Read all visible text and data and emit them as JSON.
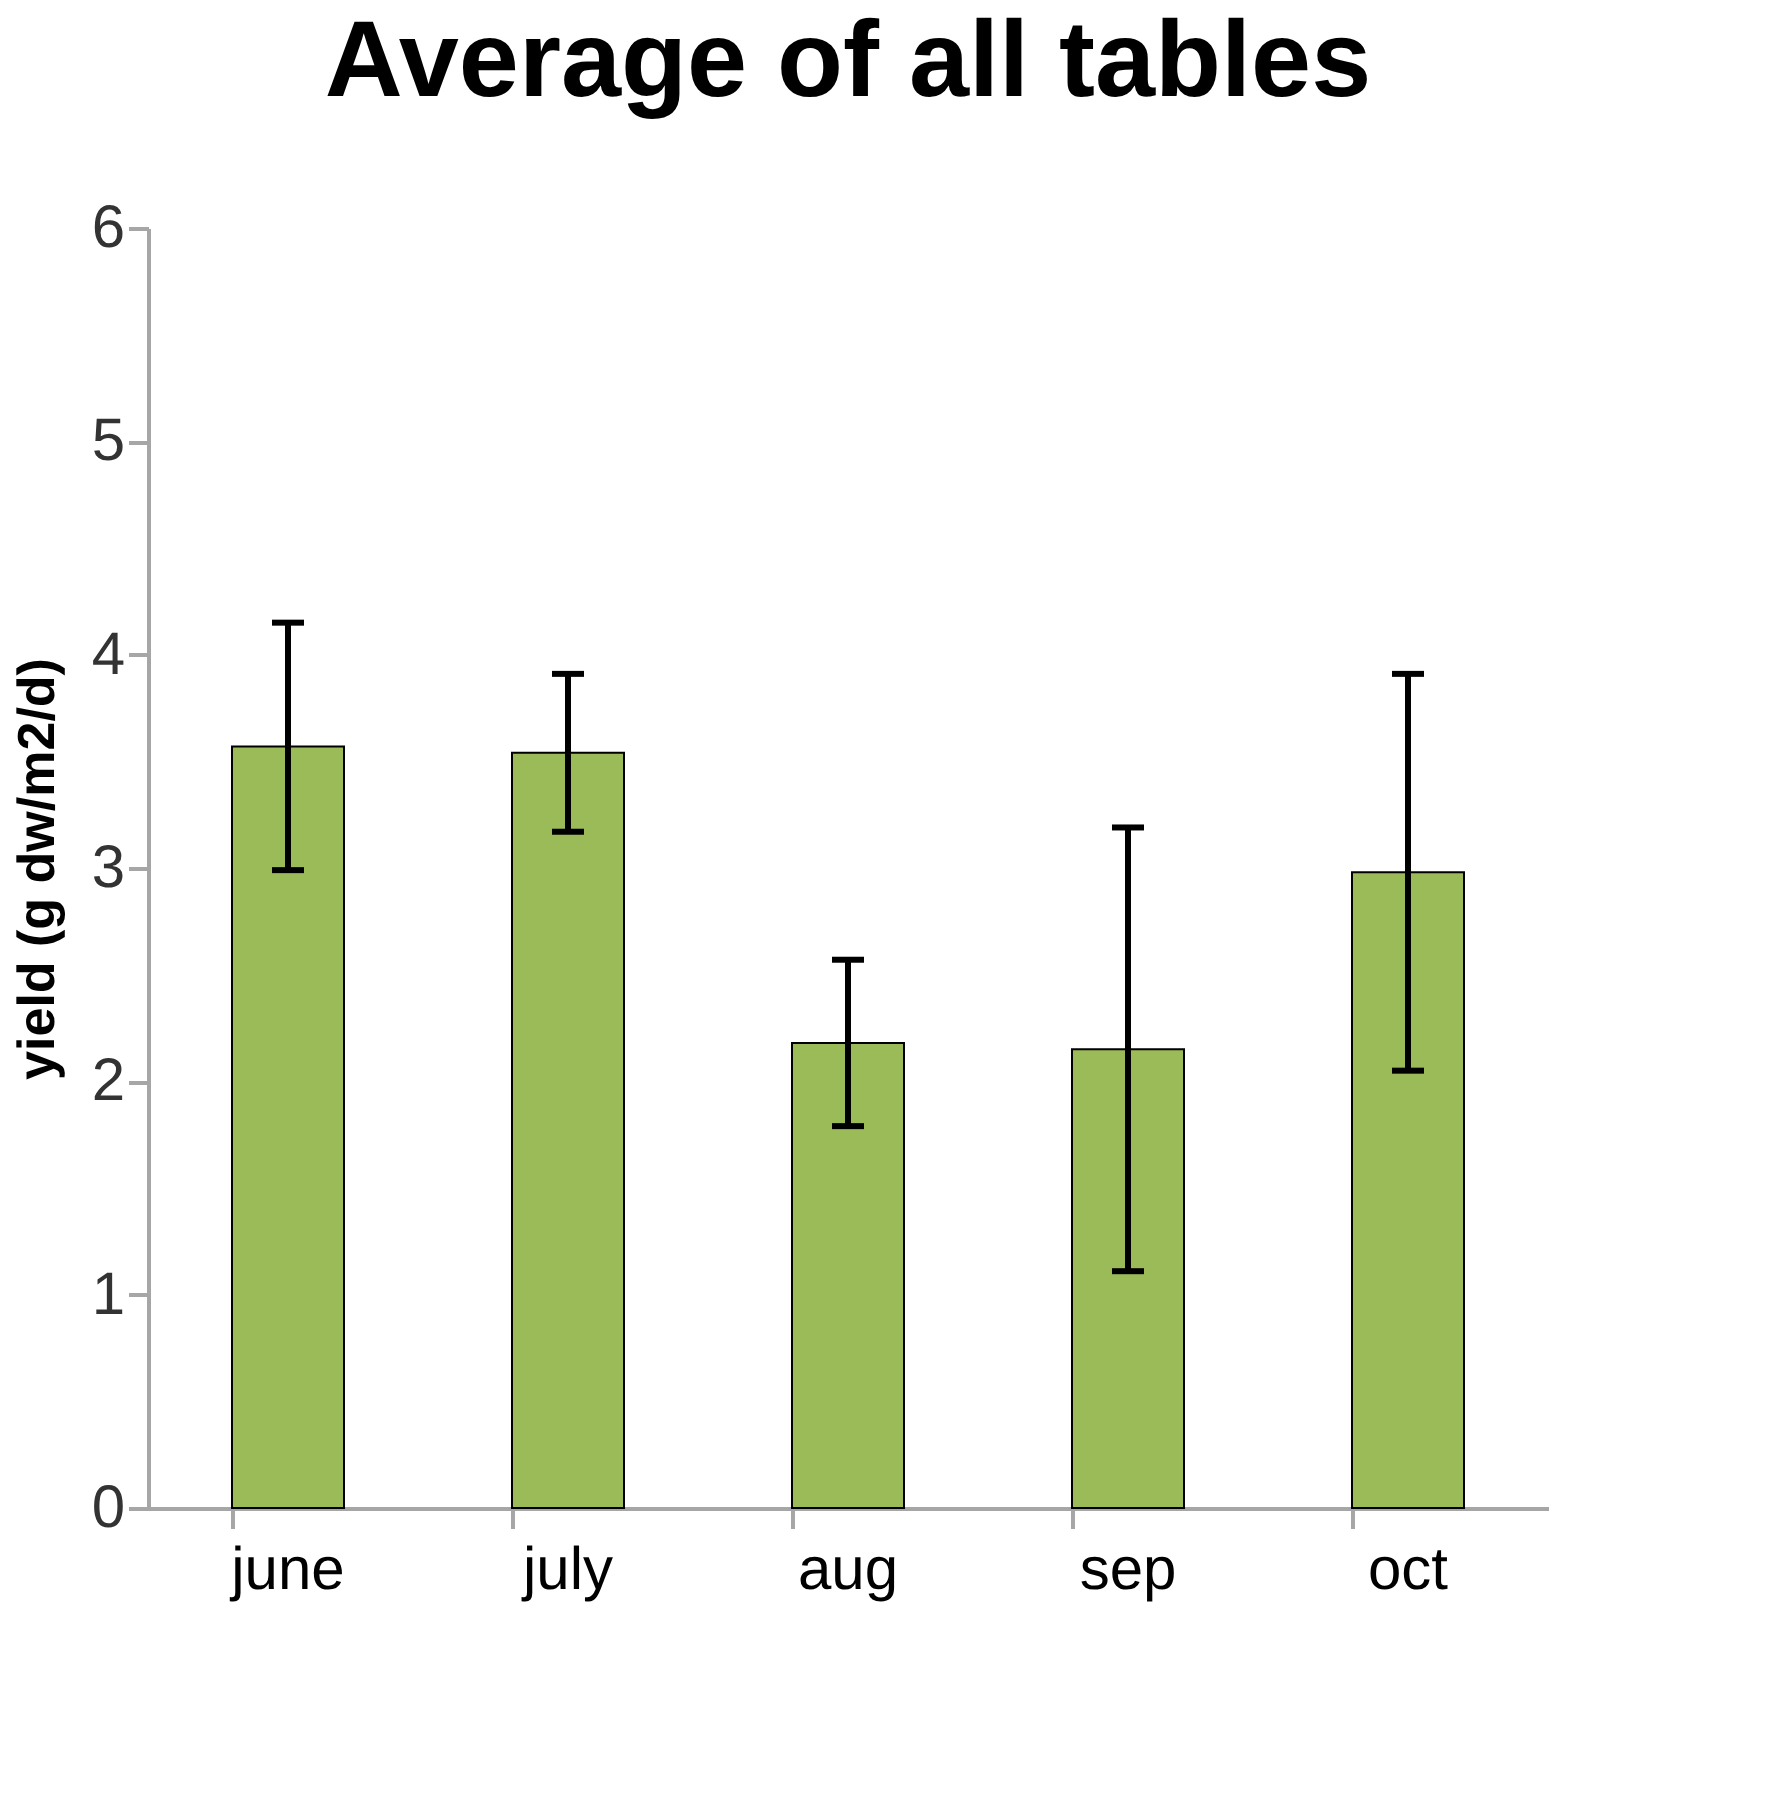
{
  "chart_data": {
    "type": "bar",
    "title": "Average of all tables",
    "ylabel": "yield (g dw/m2/d)",
    "categories": [
      "june",
      "july",
      "aug",
      "sep",
      "oct"
    ],
    "values": [
      3.57,
      3.54,
      2.18,
      2.15,
      2.98
    ],
    "errors": [
      0.58,
      0.37,
      0.39,
      1.04,
      0.93
    ],
    "color": "#9bbb59",
    "ylim": [
      0,
      6
    ],
    "yticks": [
      0,
      1,
      2,
      3,
      4,
      5,
      6
    ],
    "grid": false
  }
}
